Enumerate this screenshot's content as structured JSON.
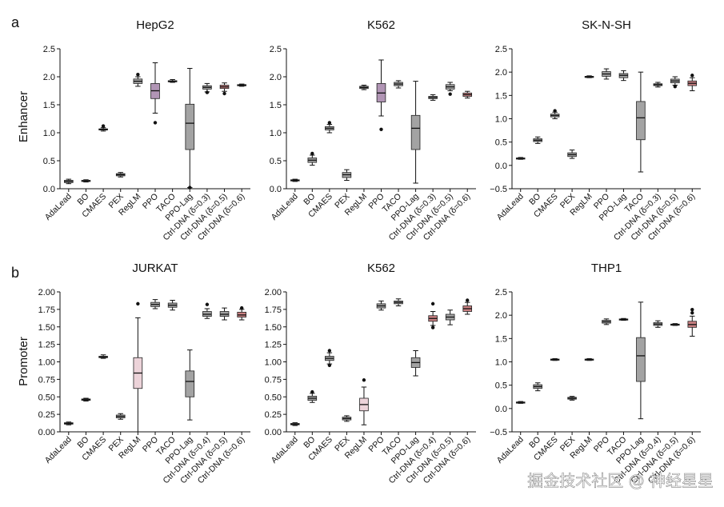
{
  "panel_labels": {
    "a": "a",
    "b": "b"
  },
  "row_labels": {
    "enhancer": "Enhancer",
    "promoter": "Promoter"
  },
  "watermark": "掘金技术社区 @ 神经星星",
  "colors": {
    "box_gray": "#a3a3a3",
    "box_purple": "#b195b5",
    "box_red": "#c98082",
    "box_pink": "#ecd3d9",
    "line": "#111111"
  },
  "chart_data": [
    {
      "type": "box",
      "title": "HepG2",
      "ylabel": "Enhancer",
      "ylim": [
        0,
        2.5
      ],
      "yticks": [
        "0.0",
        "0.5",
        "1.0",
        "1.5",
        "2.0",
        "2.5"
      ],
      "categories": [
        "AdaLead",
        "BO",
        "CMAES",
        "PEX",
        "RegLM",
        "PPO",
        "TACO",
        "PPO-Lag",
        "Ctrl-DNA (δ=0.3)",
        "Ctrl-DNA (δ=0.5)",
        "Ctrl-DNA (δ=0.6)"
      ],
      "boxes": [
        {
          "lw": 0.09,
          "q1": 0.11,
          "med": 0.13,
          "q3": 0.15,
          "hw": 0.17,
          "out": [],
          "color": "box_gray"
        },
        {
          "lw": 0.12,
          "q1": 0.13,
          "med": 0.14,
          "q3": 0.15,
          "hw": 0.16,
          "out": [],
          "color": "box_gray"
        },
        {
          "lw": 1.03,
          "q1": 1.05,
          "med": 1.06,
          "q3": 1.07,
          "hw": 1.09,
          "out": [
            1.12
          ],
          "color": "box_gray"
        },
        {
          "lw": 0.21,
          "q1": 0.23,
          "med": 0.25,
          "q3": 0.27,
          "hw": 0.29,
          "out": [],
          "color": "box_gray"
        },
        {
          "lw": 1.83,
          "q1": 1.88,
          "med": 1.92,
          "q3": 1.96,
          "hw": 2.0,
          "out": [
            2.04
          ],
          "color": "box_gray"
        },
        {
          "lw": 1.35,
          "q1": 1.61,
          "med": 1.75,
          "q3": 1.88,
          "hw": 2.25,
          "out": [
            1.18
          ],
          "color": "box_purple"
        },
        {
          "lw": 1.9,
          "q1": 1.91,
          "med": 1.92,
          "q3": 1.93,
          "hw": 1.95,
          "out": [],
          "color": "box_gray"
        },
        {
          "lw": 0.02,
          "q1": 0.7,
          "med": 1.17,
          "q3": 1.51,
          "hw": 2.15,
          "out": [
            0.02
          ],
          "color": "box_gray"
        },
        {
          "lw": 1.73,
          "q1": 1.78,
          "med": 1.81,
          "q3": 1.84,
          "hw": 1.88,
          "out": [
            1.72
          ],
          "color": "box_gray"
        },
        {
          "lw": 1.74,
          "q1": 1.79,
          "med": 1.82,
          "q3": 1.85,
          "hw": 1.89,
          "out": [
            1.7
          ],
          "color": "box_red"
        },
        {
          "lw": 1.83,
          "q1": 1.84,
          "med": 1.85,
          "q3": 1.86,
          "hw": 1.87,
          "out": [],
          "color": "box_gray"
        }
      ]
    },
    {
      "type": "box",
      "title": "K562",
      "ylabel": "",
      "ylim": [
        0,
        2.5
      ],
      "yticks": [
        "0.0",
        "0.5",
        "1.0",
        "1.5",
        "2.0",
        "2.5"
      ],
      "categories": [
        "AdaLead",
        "BO",
        "CMAES",
        "PEX",
        "RegLM",
        "PPO",
        "TACO",
        "PPO-Lag",
        "Ctrl-DNA (δ=0.3)",
        "Ctrl-DNA (δ=0.5)",
        "Ctrl-DNA (δ=0.6)"
      ],
      "boxes": [
        {
          "lw": 0.13,
          "q1": 0.14,
          "med": 0.15,
          "q3": 0.16,
          "hw": 0.17,
          "out": [],
          "color": "box_gray"
        },
        {
          "lw": 0.42,
          "q1": 0.47,
          "med": 0.51,
          "q3": 0.55,
          "hw": 0.6,
          "out": [
            0.63
          ],
          "color": "box_gray"
        },
        {
          "lw": 1.0,
          "q1": 1.05,
          "med": 1.08,
          "q3": 1.11,
          "hw": 1.15,
          "out": [
            1.18
          ],
          "color": "box_gray"
        },
        {
          "lw": 0.15,
          "q1": 0.2,
          "med": 0.25,
          "q3": 0.29,
          "hw": 0.34,
          "out": [],
          "color": "box_gray"
        },
        {
          "lw": 1.77,
          "q1": 1.79,
          "med": 1.81,
          "q3": 1.83,
          "hw": 1.85,
          "out": [],
          "color": "box_gray"
        },
        {
          "lw": 1.3,
          "q1": 1.55,
          "med": 1.71,
          "q3": 1.88,
          "hw": 2.3,
          "out": [
            1.06
          ],
          "color": "box_purple"
        },
        {
          "lw": 1.8,
          "q1": 1.84,
          "med": 1.87,
          "q3": 1.9,
          "hw": 1.93,
          "out": [],
          "color": "box_gray"
        },
        {
          "lw": 0.1,
          "q1": 0.7,
          "med": 1.08,
          "q3": 1.31,
          "hw": 1.92,
          "out": [],
          "color": "box_gray"
        },
        {
          "lw": 1.58,
          "q1": 1.61,
          "med": 1.63,
          "q3": 1.65,
          "hw": 1.68,
          "out": [],
          "color": "box_gray"
        },
        {
          "lw": 1.75,
          "q1": 1.78,
          "med": 1.82,
          "q3": 1.86,
          "hw": 1.9,
          "out": [
            1.69
          ],
          "color": "box_gray"
        },
        {
          "lw": 1.62,
          "q1": 1.65,
          "med": 1.68,
          "q3": 1.71,
          "hw": 1.74,
          "out": [],
          "color": "box_red"
        }
      ]
    },
    {
      "type": "box",
      "title": "SK-N-SH",
      "ylabel": "",
      "ylim": [
        -0.5,
        2.5
      ],
      "yticks": [
        "−0.5",
        "0.0",
        "0.5",
        "1.0",
        "1.5",
        "2.0",
        "2.5"
      ],
      "categories": [
        "AdaLead",
        "BO",
        "CMAES",
        "PEX",
        "RegLM",
        "PPO",
        "PPO-Lag",
        "TACO",
        "Ctrl-DNA (δ=0.3)",
        "Ctrl-DNA (δ=0.5)",
        "Ctrl-DNA (δ=0.6)"
      ],
      "boxes": [
        {
          "lw": 0.13,
          "q1": 0.14,
          "med": 0.15,
          "q3": 0.16,
          "hw": 0.17,
          "out": [],
          "color": "box_gray"
        },
        {
          "lw": 0.47,
          "q1": 0.51,
          "med": 0.54,
          "q3": 0.57,
          "hw": 0.61,
          "out": [],
          "color": "box_gray"
        },
        {
          "lw": 1.0,
          "q1": 1.04,
          "med": 1.07,
          "q3": 1.1,
          "hw": 1.14,
          "out": [
            1.17
          ],
          "color": "box_gray"
        },
        {
          "lw": 0.15,
          "q1": 0.19,
          "med": 0.23,
          "q3": 0.27,
          "hw": 0.33,
          "out": [],
          "color": "box_gray"
        },
        {
          "lw": 1.88,
          "q1": 1.89,
          "med": 1.9,
          "q3": 1.91,
          "hw": 1.92,
          "out": [],
          "color": "box_gray"
        },
        {
          "lw": 1.85,
          "q1": 1.91,
          "med": 1.96,
          "q3": 2.01,
          "hw": 2.07,
          "out": [],
          "color": "box_gray"
        },
        {
          "lw": 1.82,
          "q1": 1.88,
          "med": 1.93,
          "q3": 1.97,
          "hw": 2.03,
          "out": [],
          "color": "box_gray"
        },
        {
          "lw": -0.14,
          "q1": 0.55,
          "med": 1.02,
          "q3": 1.37,
          "hw": 2.0,
          "out": [],
          "color": "box_gray"
        },
        {
          "lw": 1.68,
          "q1": 1.71,
          "med": 1.73,
          "q3": 1.75,
          "hw": 1.78,
          "out": [],
          "color": "box_gray"
        },
        {
          "lw": 1.72,
          "q1": 1.77,
          "med": 1.81,
          "q3": 1.85,
          "hw": 1.9,
          "out": [
            1.69
          ],
          "color": "box_gray"
        },
        {
          "lw": 1.6,
          "q1": 1.71,
          "med": 1.76,
          "q3": 1.81,
          "hw": 1.88,
          "out": [
            1.93
          ],
          "color": "box_red"
        }
      ]
    },
    {
      "type": "box",
      "title": "JURKAT",
      "ylabel": "Promoter",
      "ylim": [
        0,
        2.0
      ],
      "yticks": [
        "0.00",
        "0.25",
        "0.50",
        "0.75",
        "1.00",
        "1.25",
        "1.50",
        "1.75",
        "2.00"
      ],
      "categories": [
        "AdaLead",
        "BO",
        "CMAES",
        "PEX",
        "RegLM",
        "PPO",
        "TACO",
        "PPO-Lag",
        "Ctrl-DNA (δ=0.4)",
        "Ctrl-DNA (δ=0.5)",
        "Ctrl-DNA (δ=0.6)"
      ],
      "boxes": [
        {
          "lw": 0.1,
          "q1": 0.11,
          "med": 0.12,
          "q3": 0.13,
          "hw": 0.14,
          "out": [],
          "color": "box_gray"
        },
        {
          "lw": 0.44,
          "q1": 0.45,
          "med": 0.46,
          "q3": 0.47,
          "hw": 0.48,
          "out": [],
          "color": "box_gray"
        },
        {
          "lw": 1.05,
          "q1": 1.06,
          "med": 1.07,
          "q3": 1.08,
          "hw": 1.1,
          "out": [],
          "color": "box_gray"
        },
        {
          "lw": 0.18,
          "q1": 0.2,
          "med": 0.22,
          "q3": 0.24,
          "hw": 0.26,
          "out": [],
          "color": "box_gray"
        },
        {
          "lw": 0.0,
          "q1": 0.62,
          "med": 0.84,
          "q3": 1.06,
          "hw": 1.63,
          "out": [
            1.83
          ],
          "color": "box_pink"
        },
        {
          "lw": 1.76,
          "q1": 1.79,
          "med": 1.82,
          "q3": 1.85,
          "hw": 1.89,
          "out": [],
          "color": "box_gray"
        },
        {
          "lw": 1.74,
          "q1": 1.78,
          "med": 1.81,
          "q3": 1.84,
          "hw": 1.88,
          "out": [],
          "color": "box_gray"
        },
        {
          "lw": 0.17,
          "q1": 0.5,
          "med": 0.72,
          "q3": 0.87,
          "hw": 1.17,
          "out": [],
          "color": "box_gray"
        },
        {
          "lw": 1.62,
          "q1": 1.65,
          "med": 1.68,
          "q3": 1.72,
          "hw": 1.76,
          "out": [
            1.82
          ],
          "color": "box_gray"
        },
        {
          "lw": 1.6,
          "q1": 1.65,
          "med": 1.68,
          "q3": 1.72,
          "hw": 1.77,
          "out": [],
          "color": "box_gray"
        },
        {
          "lw": 1.6,
          "q1": 1.64,
          "med": 1.67,
          "q3": 1.71,
          "hw": 1.75,
          "out": [
            1.77
          ],
          "color": "box_red"
        }
      ]
    },
    {
      "type": "box",
      "title": "K562",
      "ylabel": "",
      "ylim": [
        0,
        2.0
      ],
      "yticks": [
        "0.00",
        "0.25",
        "0.50",
        "0.75",
        "1.00",
        "1.25",
        "1.50",
        "1.75",
        "2.00"
      ],
      "categories": [
        "AdaLead",
        "BO",
        "CMAES",
        "PEX",
        "RegLM",
        "PPO",
        "TACO",
        "PPO-Lag",
        "Ctrl-DNA (δ=0.4)",
        "Ctrl-DNA (δ=0.5)",
        "Ctrl-DNA (δ=0.6)"
      ],
      "boxes": [
        {
          "lw": 0.09,
          "q1": 0.1,
          "med": 0.11,
          "q3": 0.12,
          "hw": 0.13,
          "out": [],
          "color": "box_gray"
        },
        {
          "lw": 0.42,
          "q1": 0.45,
          "med": 0.48,
          "q3": 0.51,
          "hw": 0.55,
          "out": [
            0.57
          ],
          "color": "box_gray"
        },
        {
          "lw": 0.97,
          "q1": 1.02,
          "med": 1.05,
          "q3": 1.08,
          "hw": 1.13,
          "out": [
            0.95,
            1.16
          ],
          "color": "box_gray"
        },
        {
          "lw": 0.15,
          "q1": 0.17,
          "med": 0.19,
          "q3": 0.21,
          "hw": 0.23,
          "out": [],
          "color": "box_gray"
        },
        {
          "lw": 0.1,
          "q1": 0.3,
          "med": 0.39,
          "q3": 0.48,
          "hw": 0.64,
          "out": [
            0.74
          ],
          "color": "box_pink"
        },
        {
          "lw": 1.74,
          "q1": 1.77,
          "med": 1.8,
          "q3": 1.83,
          "hw": 1.87,
          "out": [],
          "color": "box_gray"
        },
        {
          "lw": 1.8,
          "q1": 1.83,
          "med": 1.85,
          "q3": 1.87,
          "hw": 1.9,
          "out": [],
          "color": "box_gray"
        },
        {
          "lw": 0.8,
          "q1": 0.92,
          "med": 0.99,
          "q3": 1.06,
          "hw": 1.16,
          "out": [],
          "color": "box_gray"
        },
        {
          "lw": 1.52,
          "q1": 1.58,
          "med": 1.62,
          "q3": 1.66,
          "hw": 1.72,
          "out": [
            1.49,
            1.83
          ],
          "color": "box_red"
        },
        {
          "lw": 1.53,
          "q1": 1.6,
          "med": 1.64,
          "q3": 1.68,
          "hw": 1.74,
          "out": [],
          "color": "box_gray"
        },
        {
          "lw": 1.68,
          "q1": 1.72,
          "med": 1.76,
          "q3": 1.8,
          "hw": 1.85,
          "out": [
            1.88
          ],
          "color": "box_red"
        }
      ]
    },
    {
      "type": "box",
      "title": "THP1",
      "ylabel": "",
      "ylim": [
        -0.5,
        2.5
      ],
      "yticks": [
        "−0.5",
        "0.0",
        "0.5",
        "1.0",
        "1.5",
        "2.0",
        "2.5"
      ],
      "categories": [
        "AdaLead",
        "BO",
        "CMAES",
        "PEX",
        "RegLM",
        "PPO",
        "TACO",
        "PPO-Lag",
        "Ctrl-DNA (δ=0.4)",
        "Ctrl-DNA (δ=0.5)",
        "Ctrl-DNA (δ=0.6)"
      ],
      "boxes": [
        {
          "lw": 0.11,
          "q1": 0.12,
          "med": 0.13,
          "q3": 0.14,
          "hw": 0.15,
          "out": [],
          "color": "box_gray"
        },
        {
          "lw": 0.38,
          "q1": 0.43,
          "med": 0.47,
          "q3": 0.51,
          "hw": 0.55,
          "out": [],
          "color": "box_gray"
        },
        {
          "lw": 1.03,
          "q1": 1.04,
          "med": 1.05,
          "q3": 1.06,
          "hw": 1.07,
          "out": [],
          "color": "box_gray"
        },
        {
          "lw": 0.18,
          "q1": 0.2,
          "med": 0.22,
          "q3": 0.24,
          "hw": 0.26,
          "out": [],
          "color": "box_gray"
        },
        {
          "lw": 1.03,
          "q1": 1.04,
          "med": 1.05,
          "q3": 1.06,
          "hw": 1.07,
          "out": [],
          "color": "box_gray"
        },
        {
          "lw": 1.8,
          "q1": 1.83,
          "med": 1.86,
          "q3": 1.89,
          "hw": 1.92,
          "out": [],
          "color": "box_gray"
        },
        {
          "lw": 1.89,
          "q1": 1.9,
          "med": 1.91,
          "q3": 1.92,
          "hw": 1.93,
          "out": [],
          "color": "box_gray"
        },
        {
          "lw": -0.22,
          "q1": 0.58,
          "med": 1.13,
          "q3": 1.52,
          "hw": 2.28,
          "out": [],
          "color": "box_gray"
        },
        {
          "lw": 1.74,
          "q1": 1.78,
          "med": 1.81,
          "q3": 1.84,
          "hw": 1.88,
          "out": [],
          "color": "box_gray"
        },
        {
          "lw": 1.78,
          "q1": 1.79,
          "med": 1.8,
          "q3": 1.81,
          "hw": 1.82,
          "out": [],
          "color": "box_gray"
        },
        {
          "lw": 1.55,
          "q1": 1.74,
          "med": 1.8,
          "q3": 1.87,
          "hw": 1.98,
          "out": [
            2.05,
            2.12
          ],
          "color": "box_red"
        }
      ]
    }
  ]
}
